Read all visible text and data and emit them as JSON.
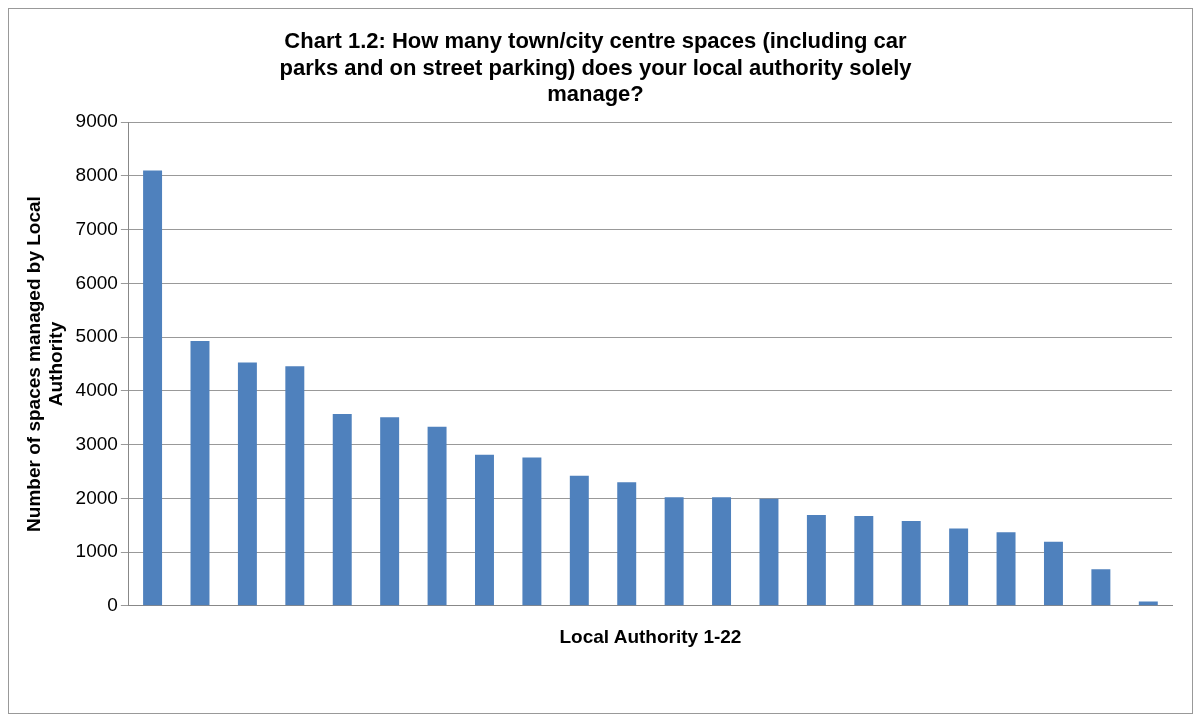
{
  "chart_data": {
    "type": "bar",
    "title": "Chart 1.2: How many town/city centre spaces (including car parks and on street parking) does your local authority solely manage?",
    "xlabel": "Local Authority 1-22",
    "ylabel": "Number of spaces managed by Local Authority",
    "categories": [
      null,
      null,
      null,
      null,
      null,
      null,
      null,
      null,
      null,
      null,
      null,
      null,
      null,
      null,
      null,
      null,
      null,
      null,
      null,
      null,
      null,
      null
    ],
    "values": [
      8100,
      4930,
      4530,
      4460,
      3570,
      3510,
      3330,
      2810,
      2760,
      2420,
      2300,
      2020,
      2020,
      1990,
      1690,
      1670,
      1580,
      1440,
      1370,
      1190,
      680,
      80
    ],
    "color": "#4f81bd",
    "ylim": [
      0,
      9000
    ],
    "yticks": [
      0,
      1000,
      2000,
      3000,
      4000,
      5000,
      6000,
      7000,
      8000,
      9000
    ],
    "grid": "y",
    "legend": false
  }
}
